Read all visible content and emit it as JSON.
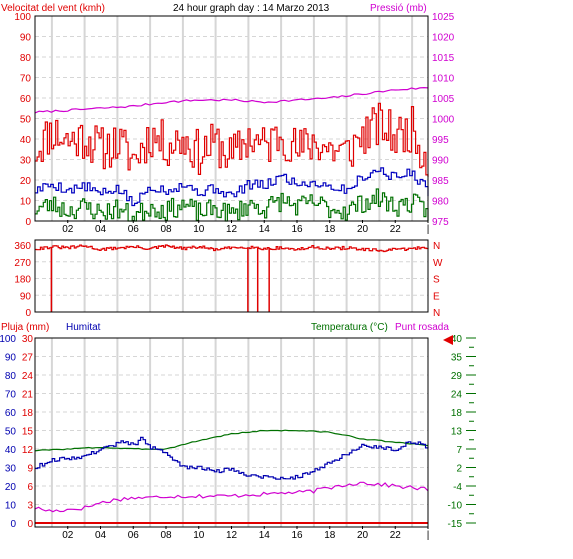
{
  "header": {
    "wind_label": "Velocitat del vent (kmh)",
    "title": "24 hour graph day : 14 Marzo 2013",
    "pressure_label": "Pressió (mb)"
  },
  "lower_header": {
    "rain_label": "Pluja (mm)",
    "humidity_label": "Humitat",
    "temp_label": "Temperatura (°C)",
    "dew_label": "Punt rosada"
  },
  "colors": {
    "wind_gust": "#e00000",
    "wind_avg": "#0000c0",
    "wind_min": "#007000",
    "pressure": "#d000d0",
    "direction": "#e00000",
    "rain": "#e00000",
    "humidity": "#0000b0",
    "temperature": "#007000",
    "dew_point": "#d000d0",
    "grid": "#d6d6d6",
    "marker": "#e00000"
  },
  "chart_data": [
    {
      "type": "line",
      "title": "24 hour graph day : 14 Marzo 2013",
      "x_tick_labels": [
        "02",
        "04",
        "06",
        "08",
        "10",
        "12",
        "14",
        "16",
        "18",
        "20",
        "22",
        "|"
      ],
      "x_range": [
        0,
        24
      ],
      "left_axis": {
        "label": "Velocitat del vent (kmh)",
        "ticks": [
          "0",
          "10",
          "20",
          "30",
          "40",
          "50",
          "60",
          "70",
          "80",
          "90",
          "100"
        ],
        "range": [
          0,
          100
        ]
      },
      "right_axis": {
        "label": "Pressió (mb)",
        "ticks": [
          "975",
          "980",
          "985",
          "990",
          "995",
          "1000",
          "1005",
          "1010",
          "1015",
          "1020",
          "1025"
        ],
        "range": [
          975,
          1025
        ]
      },
      "series": [
        {
          "x": [
            0,
            1,
            2,
            3,
            4,
            5,
            6,
            7,
            8,
            9,
            10,
            11,
            12,
            13,
            14,
            15,
            16,
            17,
            18,
            19,
            20,
            21,
            22,
            23,
            24
          ],
          "values": [
            35,
            44,
            39,
            41,
            35,
            38,
            30,
            42,
            37,
            40,
            33,
            38,
            31,
            41,
            36,
            43,
            34,
            39,
            35,
            33,
            42,
            47,
            41,
            45,
            28
          ]
        },
        {
          "x": [
            0,
            1,
            2,
            3,
            4,
            5,
            6,
            7,
            8,
            9,
            10,
            11,
            12,
            13,
            14,
            15,
            16,
            17,
            18,
            19,
            20,
            21,
            22,
            23,
            24
          ],
          "values": [
            15,
            18,
            15,
            17,
            13,
            16,
            8,
            17,
            15,
            18,
            14,
            16,
            12,
            18,
            17,
            22,
            18,
            19,
            17,
            15,
            22,
            25,
            21,
            24,
            14
          ]
        },
        {
          "x": [
            0,
            1,
            2,
            3,
            4,
            5,
            6,
            7,
            8,
            9,
            10,
            11,
            12,
            13,
            14,
            15,
            16,
            17,
            18,
            19,
            20,
            21,
            22,
            23,
            24
          ],
          "values": [
            6,
            8,
            5,
            7,
            4,
            6,
            2,
            7,
            5,
            8,
            4,
            6,
            3,
            8,
            6,
            10,
            7,
            9,
            6,
            5,
            9,
            11,
            7,
            9,
            4
          ]
        },
        {
          "x": [
            0,
            2,
            4,
            6,
            8,
            10,
            12,
            14,
            16,
            18,
            20,
            22,
            24
          ],
          "values": [
            1001.5,
            1002,
            1002.5,
            1003,
            1004,
            1004.5,
            1004.5,
            1004,
            1004.5,
            1005,
            1006,
            1007,
            1007.5
          ]
        }
      ]
    },
    {
      "type": "line",
      "x_tick_labels": [
        "02",
        "04",
        "06",
        "08",
        "10",
        "12",
        "14",
        "16",
        "18",
        "20",
        "22",
        "|"
      ],
      "x_range": [
        0,
        24
      ],
      "left_axis": {
        "ticks": [
          "0",
          "90",
          "180",
          "270",
          "360"
        ],
        "range": [
          0,
          360
        ]
      },
      "right_axis": {
        "ticks": [
          "N",
          "E",
          "S",
          "W",
          "N"
        ]
      },
      "series": [
        {
          "x": [
            0,
            1,
            2,
            3,
            4,
            5,
            6,
            7,
            8,
            9,
            10,
            11,
            12,
            13,
            14,
            15,
            16,
            17,
            18,
            19,
            20,
            21,
            22,
            23,
            24
          ],
          "values": [
            340,
            350,
            345,
            355,
            335,
            345,
            350,
            340,
            355,
            340,
            350,
            335,
            345,
            350,
            340,
            345,
            335,
            350,
            340,
            345,
            335,
            330,
            335,
            340,
            350
          ]
        },
        {
          "x": [
            1,
            13,
            13.6,
            14.3
          ],
          "values": [
            0,
            0,
            0,
            0
          ]
        }
      ]
    },
    {
      "type": "line",
      "x_tick_labels": [
        "02",
        "04",
        "06",
        "08",
        "10",
        "12",
        "14",
        "16",
        "18",
        "20",
        "22",
        "|"
      ],
      "x_range": [
        0,
        24
      ],
      "left_axis_rain": {
        "label": "Pluja (mm)",
        "ticks": [
          "0",
          "3",
          "6",
          "9",
          "12",
          "15",
          "18",
          "21",
          "24",
          "27",
          "30"
        ],
        "range": [
          0,
          30
        ]
      },
      "left_axis_humidity": {
        "label": "Humitat",
        "ticks": [
          "0",
          "10",
          "20",
          "30",
          "40",
          "50",
          "60",
          "70",
          "80",
          "90",
          "100"
        ],
        "range": [
          0,
          100
        ]
      },
      "right_axis": {
        "label": "Temperatura (°C)",
        "ticks": [
          "-15",
          "-10",
          "-4",
          "2",
          "7",
          "13",
          "18",
          "24",
          "29",
          "35",
          "40"
        ],
        "range": [
          -15,
          40
        ]
      },
      "series": [
        {
          "x": [
            0,
            24
          ],
          "values": [
            0,
            0
          ]
        },
        {
          "x": [
            0,
            1,
            2,
            3,
            4,
            5,
            5.5,
            6,
            6.5,
            7,
            7.5,
            8,
            9,
            10,
            11,
            12,
            13,
            14,
            15,
            16,
            17,
            18,
            19,
            20,
            21,
            22,
            23,
            24
          ],
          "values": [
            30,
            34,
            35,
            36,
            40,
            43,
            44,
            42,
            46,
            41,
            39,
            38,
            30,
            30,
            28,
            29,
            26,
            25,
            24,
            25,
            28,
            33,
            37,
            42,
            41,
            40,
            44,
            41
          ]
        },
        {
          "x": [
            0,
            2,
            4,
            6,
            8,
            10,
            12,
            14,
            16,
            18,
            20,
            22,
            24
          ],
          "values": [
            6.5,
            7,
            7.5,
            7,
            7,
            9.5,
            11.5,
            12.5,
            12.5,
            12,
            10,
            9,
            8
          ]
        },
        {
          "x": [
            0,
            1,
            2,
            3,
            4,
            5,
            6,
            7,
            8,
            9,
            10,
            11,
            12,
            13,
            14,
            15,
            16,
            17,
            18,
            19,
            20,
            21,
            22,
            23,
            24
          ],
          "values": [
            -10.5,
            -11.5,
            -11,
            -10.5,
            -9,
            -8,
            -7.5,
            -7.5,
            -7,
            -7,
            -7,
            -7,
            -7,
            -6.5,
            -6.5,
            -6,
            -6,
            -5.5,
            -4.5,
            -3.5,
            -3,
            -3.5,
            -4,
            -4.5,
            -5
          ]
        }
      ]
    }
  ]
}
